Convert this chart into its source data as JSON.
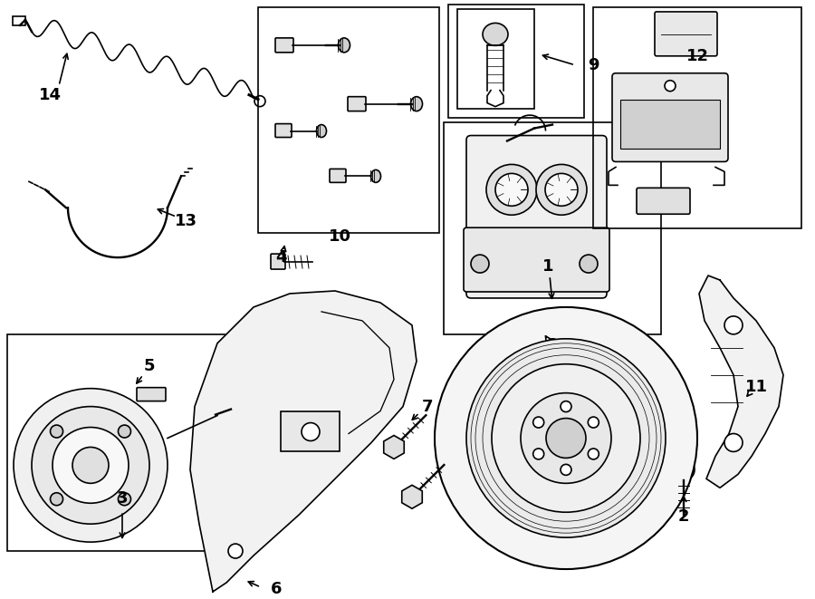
{
  "bg_color": "#ffffff",
  "line_color": "#000000",
  "fig_width": 9.0,
  "fig_height": 6.61
}
